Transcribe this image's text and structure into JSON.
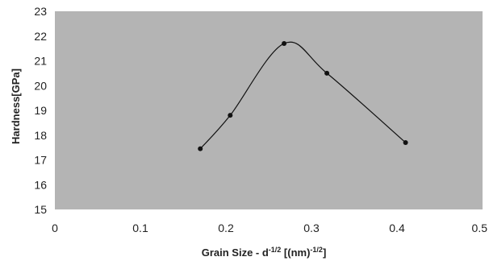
{
  "chart_data": {
    "type": "scatter",
    "title": "",
    "xlabel": {
      "prefix": "Grain Size - d",
      "exp1": "-1/2",
      "middle": " [(nm)",
      "exp2": "-1/2",
      "suffix": "]"
    },
    "ylabel": "Hardness[GPa]",
    "xlim": [
      0,
      0.5
    ],
    "ylim": [
      15,
      23
    ],
    "x_ticks": [
      "0",
      "0.1",
      "0.2",
      "0.3",
      "0.4",
      "0.5"
    ],
    "y_ticks": [
      "15",
      "16",
      "17",
      "18",
      "19",
      "20",
      "21",
      "22",
      "23"
    ],
    "grid": false,
    "legend": "none",
    "plot_background": "#b4b4b4",
    "marker_color": "#111111",
    "line_color": "#111111",
    "series": [
      {
        "x": [
          0.17,
          0.205,
          0.268,
          0.318,
          0.41
        ],
        "y": [
          17.45,
          18.8,
          21.7,
          20.5,
          17.7
        ],
        "smoothed_line": true
      }
    ]
  }
}
